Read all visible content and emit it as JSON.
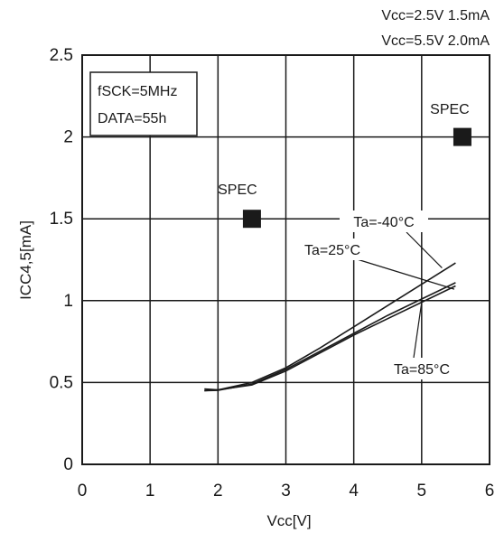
{
  "chart_data": {
    "type": "line",
    "xlabel": "Vcc[V]",
    "ylabel": "ICC4,5[mA]",
    "xlim": [
      0,
      6
    ],
    "ylim": [
      0,
      2.5
    ],
    "x_ticks": [
      "0",
      "1",
      "2",
      "3",
      "4",
      "5",
      "6"
    ],
    "y_ticks": [
      "0",
      "0.5",
      "1",
      "1.5",
      "2",
      "2.5"
    ],
    "grid": true,
    "conditions": [
      "fSCK=5MHz",
      "DATA=55h"
    ],
    "spec_notes": [
      "Vcc=2.5V 1.5mA",
      "Vcc=5.5V 2.0mA"
    ],
    "series": [
      {
        "name": "Ta=-40°C",
        "x": [
          1.8,
          2.0,
          2.5,
          3.0,
          3.5,
          4.0,
          4.5,
          5.0,
          5.5
        ],
        "y": [
          0.45,
          0.455,
          0.5,
          0.59,
          0.71,
          0.84,
          0.97,
          1.1,
          1.23
        ]
      },
      {
        "name": "Ta=25°C",
        "x": [
          1.8,
          2.0,
          2.5,
          3.0,
          3.5,
          4.0,
          4.5,
          5.0,
          5.5
        ],
        "y": [
          0.45,
          0.452,
          0.49,
          0.58,
          0.69,
          0.8,
          0.91,
          1.01,
          1.11
        ]
      },
      {
        "name": "Ta=85°C",
        "x": [
          1.8,
          2.0,
          2.5,
          3.0,
          3.5,
          4.0,
          4.5,
          5.0,
          5.5
        ],
        "y": [
          0.46,
          0.455,
          0.485,
          0.57,
          0.68,
          0.79,
          0.89,
          0.99,
          1.09
        ]
      }
    ],
    "spec_points": [
      {
        "label": "SPEC",
        "x": 2.5,
        "y": 1.5
      },
      {
        "label": "SPEC",
        "x": 5.6,
        "y": 2.0
      }
    ],
    "annotations": [
      {
        "text": "Ta=-40°C",
        "target_series": 0
      },
      {
        "text": "Ta=25°C",
        "target_series": 1
      },
      {
        "text": "Ta=85°C",
        "target_series": 2
      }
    ]
  }
}
